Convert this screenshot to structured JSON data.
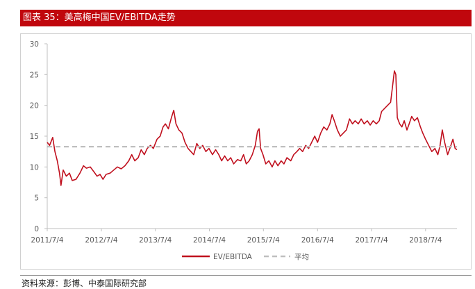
{
  "title": "图表 35：美高梅中国EV/EBITDA走势",
  "source": "资料来源：彭博、中泰国际研究部",
  "colors": {
    "series": "#c0101e",
    "average": "#bfbfbf",
    "title_bg": "#c0070d"
  },
  "chart_data": {
    "type": "line",
    "title": "图表 35：美高梅中国EV/EBITDA走势",
    "xlabel": "",
    "ylabel": "",
    "ylim": [
      0,
      30
    ],
    "yticks": [
      0,
      5,
      10,
      15,
      20,
      25,
      30
    ],
    "xlim": [
      "2011/7/4",
      "2019/2/1"
    ],
    "xticks": [
      "2011/7/4",
      "2012/7/4",
      "2013/7/4",
      "2014/7/4",
      "2015/7/4",
      "2016/7/4",
      "2017/7/4",
      "2018/7/4"
    ],
    "grid": false,
    "legend": "bottom",
    "series": [
      {
        "name": "EV/EBITDA",
        "color": "#c0101e",
        "points": [
          [
            "2011/7/4",
            14.0
          ],
          [
            "2011/7/20",
            13.5
          ],
          [
            "2011/8/10",
            14.8
          ],
          [
            "2011/8/25",
            12.5
          ],
          [
            "2011/9/10",
            11.0
          ],
          [
            "2011/9/25",
            9.0
          ],
          [
            "2011/10/5",
            7.0
          ],
          [
            "2011/10/20",
            9.5
          ],
          [
            "2011/11/10",
            8.5
          ],
          [
            "2011/12/1",
            9.0
          ],
          [
            "2011/12/20",
            7.8
          ],
          [
            "2012/1/15",
            8.0
          ],
          [
            "2012/2/10",
            9.0
          ],
          [
            "2012/3/5",
            10.2
          ],
          [
            "2012/3/25",
            9.8
          ],
          [
            "2012/4/20",
            10.0
          ],
          [
            "2012/5/15",
            9.2
          ],
          [
            "2012/6/5",
            8.5
          ],
          [
            "2012/6/25",
            8.8
          ],
          [
            "2012/7/15",
            8.0
          ],
          [
            "2012/8/5",
            8.8
          ],
          [
            "2012/9/1",
            9.0
          ],
          [
            "2012/9/25",
            9.5
          ],
          [
            "2012/10/20",
            10.0
          ],
          [
            "2012/11/15",
            9.7
          ],
          [
            "2012/12/10",
            10.2
          ],
          [
            "2013/1/5",
            11.0
          ],
          [
            "2013/1/25",
            12.0
          ],
          [
            "2013/2/15",
            11.0
          ],
          [
            "2013/3/10",
            11.5
          ],
          [
            "2013/3/30",
            12.8
          ],
          [
            "2013/4/20",
            12.0
          ],
          [
            "2013/5/10",
            13.0
          ],
          [
            "2013/6/1",
            13.5
          ],
          [
            "2013/6/20",
            13.0
          ],
          [
            "2013/7/15",
            14.5
          ],
          [
            "2013/8/5",
            15.0
          ],
          [
            "2013/8/25",
            16.5
          ],
          [
            "2013/9/10",
            17.0
          ],
          [
            "2013/9/30",
            16.2
          ],
          [
            "2013/10/20",
            18.0
          ],
          [
            "2013/11/5",
            19.2
          ],
          [
            "2013/11/20",
            17.0
          ],
          [
            "2013/12/10",
            16.0
          ],
          [
            "2013/12/31",
            15.5
          ],
          [
            "2014/1/20",
            14.0
          ],
          [
            "2014/2/10",
            13.0
          ],
          [
            "2014/3/1",
            12.5
          ],
          [
            "2014/3/20",
            12.0
          ],
          [
            "2014/4/10",
            13.8
          ],
          [
            "2014/4/30",
            13.0
          ],
          [
            "2014/5/20",
            13.5
          ],
          [
            "2014/6/10",
            12.5
          ],
          [
            "2014/7/1",
            13.0
          ],
          [
            "2014/7/25",
            12.0
          ],
          [
            "2014/8/15",
            12.8
          ],
          [
            "2014/9/5",
            12.0
          ],
          [
            "2014/9/25",
            11.0
          ],
          [
            "2014/10/15",
            11.8
          ],
          [
            "2014/11/5",
            11.0
          ],
          [
            "2014/11/25",
            11.5
          ],
          [
            "2014/12/15",
            10.5
          ],
          [
            "2015/1/10",
            11.2
          ],
          [
            "2015/2/1",
            11.0
          ],
          [
            "2015/2/20",
            12.0
          ],
          [
            "2015/3/10",
            10.5
          ],
          [
            "2015/3/30",
            11.0
          ],
          [
            "2015/4/20",
            12.0
          ],
          [
            "2015/5/10",
            13.5
          ],
          [
            "2015/5/25",
            15.8
          ],
          [
            "2015/6/5",
            16.2
          ],
          [
            "2015/6/15",
            13.0
          ],
          [
            "2015/7/1",
            12.0
          ],
          [
            "2015/7/20",
            10.5
          ],
          [
            "2015/8/10",
            11.0
          ],
          [
            "2015/9/1",
            10.0
          ],
          [
            "2015/9/20",
            11.0
          ],
          [
            "2015/10/10",
            10.2
          ],
          [
            "2015/11/1",
            11.0
          ],
          [
            "2015/11/20",
            10.5
          ],
          [
            "2015/12/10",
            11.5
          ],
          [
            "2016/1/5",
            11.0
          ],
          [
            "2016/1/25",
            12.0
          ],
          [
            "2016/2/15",
            12.5
          ],
          [
            "2016/3/5",
            13.0
          ],
          [
            "2016/3/25",
            12.5
          ],
          [
            "2016/4/15",
            13.5
          ],
          [
            "2016/5/5",
            13.0
          ],
          [
            "2016/5/25",
            14.0
          ],
          [
            "2016/6/15",
            15.0
          ],
          [
            "2016/7/4",
            14.0
          ],
          [
            "2016/7/25",
            15.5
          ],
          [
            "2016/8/15",
            16.5
          ],
          [
            "2016/9/5",
            16.0
          ],
          [
            "2016/9/25",
            17.0
          ],
          [
            "2016/10/10",
            18.5
          ],
          [
            "2016/10/25",
            17.5
          ],
          [
            "2016/11/15",
            16.0
          ],
          [
            "2016/12/5",
            15.0
          ],
          [
            "2016/12/25",
            15.5
          ],
          [
            "2017/1/15",
            16.0
          ],
          [
            "2017/2/5",
            17.8
          ],
          [
            "2017/2/25",
            17.0
          ],
          [
            "2017/3/15",
            17.5
          ],
          [
            "2017/4/5",
            17.0
          ],
          [
            "2017/4/25",
            17.8
          ],
          [
            "2017/5/15",
            17.0
          ],
          [
            "2017/6/5",
            17.5
          ],
          [
            "2017/6/25",
            16.8
          ],
          [
            "2017/7/15",
            17.5
          ],
          [
            "2017/8/5",
            17.0
          ],
          [
            "2017/8/25",
            17.5
          ],
          [
            "2017/9/10",
            19.0
          ],
          [
            "2017/9/30",
            19.5
          ],
          [
            "2017/10/20",
            20.0
          ],
          [
            "2017/11/10",
            20.5
          ],
          [
            "2017/11/25",
            23.5
          ],
          [
            "2017/12/5",
            25.6
          ],
          [
            "2017/12/15",
            25.0
          ],
          [
            "2017/12/25",
            18.0
          ],
          [
            "2018/1/10",
            17.0
          ],
          [
            "2018/1/25",
            16.5
          ],
          [
            "2018/2/10",
            17.5
          ],
          [
            "2018/2/28",
            16.0
          ],
          [
            "2018/3/15",
            17.0
          ],
          [
            "2018/4/1",
            18.2
          ],
          [
            "2018/4/20",
            17.5
          ],
          [
            "2018/5/10",
            18.0
          ],
          [
            "2018/5/30",
            16.5
          ],
          [
            "2018/6/15",
            15.5
          ],
          [
            "2018/7/4",
            14.5
          ],
          [
            "2018/7/25",
            13.5
          ],
          [
            "2018/8/15",
            12.5
          ],
          [
            "2018/9/5",
            13.0
          ],
          [
            "2018/9/25",
            12.0
          ],
          [
            "2018/10/10",
            13.5
          ],
          [
            "2018/10/25",
            16.0
          ],
          [
            "2018/11/10",
            14.0
          ],
          [
            "2018/11/30",
            12.0
          ],
          [
            "2018/12/15",
            13.0
          ],
          [
            "2019/1/5",
            14.5
          ],
          [
            "2019/1/20",
            13.0
          ],
          [
            "2019/2/1",
            12.8
          ]
        ]
      },
      {
        "name": "平均",
        "color": "#bfbfbf",
        "style": "dashed",
        "points": [
          [
            "2011/7/4",
            13.3
          ],
          [
            "2019/2/1",
            13.3
          ]
        ]
      }
    ]
  }
}
